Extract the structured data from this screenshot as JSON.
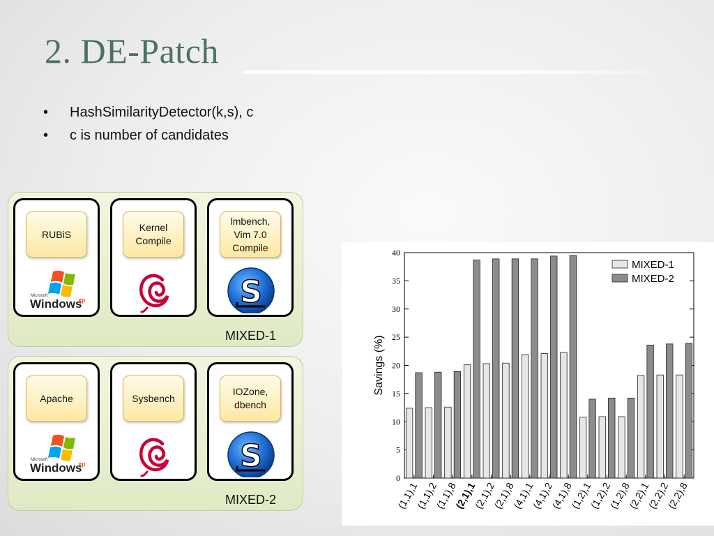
{
  "slide": {
    "title": "2. DE-Patch",
    "bullets": [
      "HashSimilarityDetector(k,s), c",
      "c is number of candidates"
    ],
    "bullet_marker": "•"
  },
  "mixed_panels": [
    {
      "label": "MIXED-1",
      "vms": [
        {
          "workload": "RUBiS",
          "os_icon": "windows-xp-icon"
        },
        {
          "workload": "Kernel\nCompile",
          "os_icon": "debian-icon"
        },
        {
          "workload": "lmbench,\nVim 7.0\nCompile",
          "os_icon": "slackware-icon"
        }
      ]
    },
    {
      "label": "MIXED-2",
      "vms": [
        {
          "workload": "Apache",
          "os_icon": "windows-xp-icon"
        },
        {
          "workload": "Sysbench",
          "os_icon": "debian-icon"
        },
        {
          "workload": "IOZone,\ndbench",
          "os_icon": "slackware-icon"
        }
      ]
    }
  ],
  "logo_text": {
    "ms": "Microsoft",
    "win": "Windows",
    "xp": "xp",
    "slack": "S"
  },
  "chart_data": {
    "type": "bar",
    "title": "",
    "xlabel": "",
    "ylabel": "Savings (%)",
    "ylim": [
      0,
      40
    ],
    "yticks": [
      0,
      5,
      10,
      15,
      20,
      25,
      30,
      35,
      40
    ],
    "categories": [
      "(1,1),1",
      "(1,1),2",
      "(1,1),8",
      "(2,1),1",
      "(2,1),2",
      "(2,1),8",
      "(4,1),1",
      "(4,1),2",
      "(4,1),8",
      "(1,2),1",
      "(1,2),2",
      "(1,2),8",
      "(2,2),1",
      "(2,2),2",
      "(2,2),8"
    ],
    "bold_category": "(2,1),1",
    "series": [
      {
        "name": "MIXED-1",
        "color": "#e6e6e6",
        "values": [
          12.4,
          12.5,
          12.6,
          20.1,
          20.3,
          20.4,
          21.9,
          22.1,
          22.3,
          10.8,
          10.9,
          10.9,
          18.2,
          18.3,
          18.3
        ]
      },
      {
        "name": "MIXED-2",
        "color": "#8c8c8c",
        "values": [
          18.7,
          18.8,
          18.9,
          38.7,
          38.9,
          38.9,
          38.9,
          39.4,
          39.5,
          14.0,
          14.2,
          14.2,
          23.6,
          23.8,
          23.9
        ]
      }
    ],
    "legend": "top-right",
    "grid": false
  }
}
